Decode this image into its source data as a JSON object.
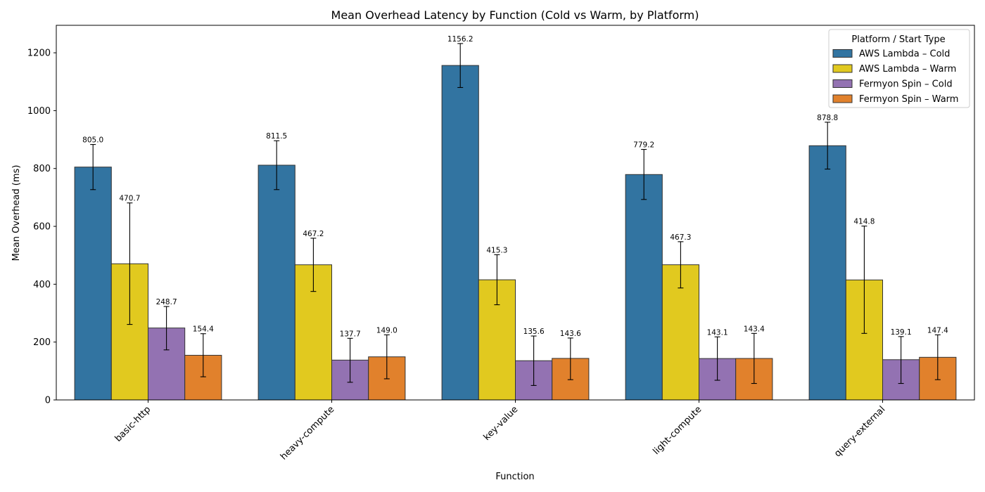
{
  "chart_data": {
    "type": "bar",
    "title": "Mean Overhead Latency by Function (Cold vs Warm, by Platform)",
    "xlabel": "Function",
    "ylabel": "Mean Overhead (ms)",
    "ylim": [
      0,
      1295
    ],
    "yticks": [
      0,
      200,
      400,
      600,
      800,
      1000,
      1200
    ],
    "grid": false,
    "legend_title": "Platform / Start Type",
    "legend_position": "top-right",
    "categories": [
      "basic-http",
      "heavy-compute",
      "key-value",
      "light-compute",
      "query-external"
    ],
    "series": [
      {
        "name": "AWS Lambda – Cold",
        "color": "#3274a1",
        "values": [
          805.0,
          811.5,
          1156.2,
          779.2,
          878.8
        ],
        "labels": [
          "805.0",
          "811.5",
          "1156.2",
          "779.2",
          "878.8"
        ],
        "error": [
          [
            727,
            883
          ],
          [
            727,
            896
          ],
          [
            1080,
            1232
          ],
          [
            693,
            866
          ],
          [
            798,
            960
          ]
        ]
      },
      {
        "name": "AWS Lambda – Warm",
        "color": "#e1c91f",
        "values": [
          470.7,
          467.2,
          415.3,
          467.3,
          414.8
        ],
        "labels": [
          "470.7",
          "467.2",
          "415.3",
          "467.3",
          "414.8"
        ],
        "error": [
          [
            261,
            681
          ],
          [
            375,
            559
          ],
          [
            329,
            502
          ],
          [
            387,
            547
          ],
          [
            230,
            601
          ]
        ]
      },
      {
        "name": "Fermyon Spin – Cold",
        "color": "#9372b2",
        "values": [
          248.7,
          137.7,
          135.6,
          143.1,
          139.1
        ],
        "labels": [
          "248.7",
          "137.7",
          "135.6",
          "143.1",
          "139.1"
        ],
        "error": [
          [
            173,
            323
          ],
          [
            61,
            213
          ],
          [
            50,
            221
          ],
          [
            68,
            218
          ],
          [
            57,
            219
          ]
        ]
      },
      {
        "name": "Fermyon Spin – Warm",
        "color": "#e1812c",
        "values": [
          154.4,
          149.0,
          143.6,
          143.4,
          147.4
        ],
        "labels": [
          "154.4",
          "149.0",
          "143.6",
          "143.4",
          "147.4"
        ],
        "error": [
          [
            80,
            229
          ],
          [
            73,
            225
          ],
          [
            70,
            214
          ],
          [
            57,
            230
          ],
          [
            70,
            225
          ]
        ]
      }
    ]
  }
}
